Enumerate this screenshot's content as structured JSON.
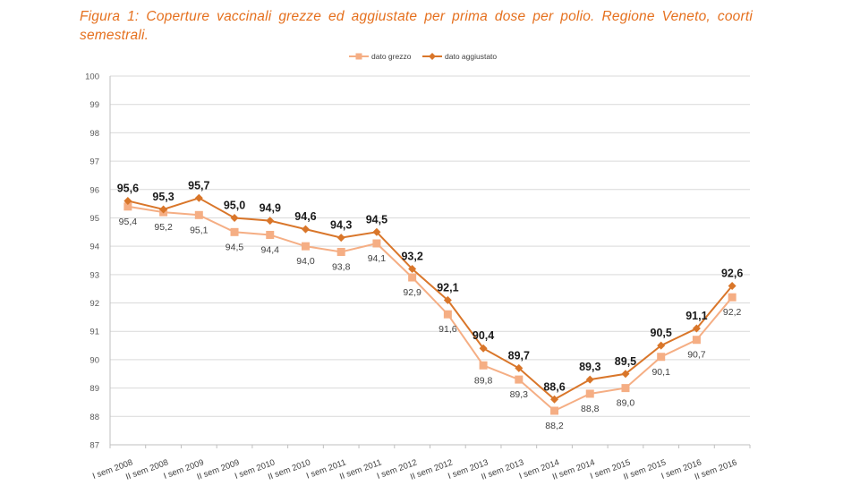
{
  "title": "Figura 1: Coperture vaccinali grezze ed aggiustate per prima dose per polio. Regione Veneto, coorti semestrali.",
  "chart_data": {
    "type": "line",
    "title": "Figura 1: Coperture vaccinali grezze ed aggiustate per prima dose per polio. Regione Veneto, coorti semestrali.",
    "xlabel": "",
    "ylabel": "",
    "ylim": [
      87,
      100
    ],
    "yticks": [
      "87",
      "88",
      "89",
      "90",
      "91",
      "92",
      "93",
      "94",
      "95",
      "96",
      "97",
      "98",
      "99",
      "100"
    ],
    "grid": true,
    "legend_position": "top-center",
    "categories": [
      "I sem 2008",
      "II sem 2008",
      "I sem 2009",
      "II sem 2009",
      "I sem 2010",
      "II sem 2010",
      "I sem 2011",
      "II sem 2011",
      "I sem 2012",
      "II sem 2012",
      "I sem 2013",
      "II sem 2013",
      "I sem 2014",
      "II sem 2014",
      "I sem 2015",
      "II sem 2015",
      "I sem 2016",
      "II sem 2016"
    ],
    "series": [
      {
        "name": "dato grezzo",
        "color": "#f5ae84",
        "values": [
          95.4,
          95.2,
          95.1,
          94.5,
          94.4,
          94.0,
          93.8,
          94.1,
          92.9,
          91.6,
          89.8,
          89.3,
          88.2,
          88.8,
          89.0,
          90.1,
          90.7,
          92.2
        ],
        "labels": [
          "95,4",
          "95,2",
          "95,1",
          "94,5",
          "94,4",
          "94,0",
          "93,8",
          "94,1",
          "92,9",
          "91,6",
          "89,8",
          "89,3",
          "88,2",
          "88,8",
          "89,0",
          "90,1",
          "90,7",
          "92,2"
        ]
      },
      {
        "name": "dato aggiustato",
        "color": "#d9762a",
        "values": [
          95.6,
          95.3,
          95.7,
          95.0,
          94.9,
          94.6,
          94.3,
          94.5,
          93.2,
          92.1,
          90.4,
          89.7,
          88.6,
          89.3,
          89.5,
          90.5,
          91.1,
          92.6
        ],
        "labels": [
          "95,6",
          "95,3",
          "95,7",
          "95,0",
          "94,9",
          "94,6",
          "94,3",
          "94,5",
          "93,2",
          "92,1",
          "90,4",
          "89,7",
          "88,6",
          "89,3",
          "89,5",
          "90,5",
          "91,1",
          "92,6"
        ]
      }
    ]
  }
}
